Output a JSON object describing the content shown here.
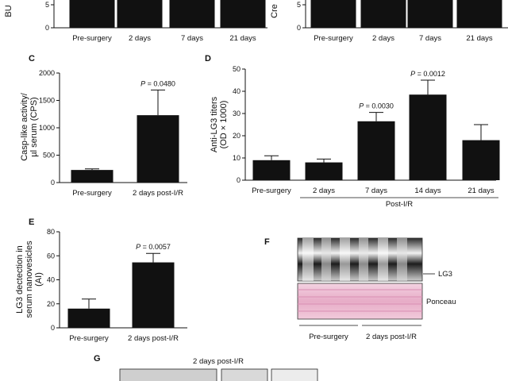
{
  "chart_data": [
    {
      "panel": "A",
      "type": "bar",
      "ylabel": "BU",
      "yticks": [
        0,
        5
      ],
      "categories": [
        "Pre-surgery",
        "2 days",
        "7 days",
        "21 days"
      ],
      "values": [
        6.5,
        6.5,
        6.5,
        6.5
      ]
    },
    {
      "panel": "B",
      "type": "bar",
      "ylabel": "Cre",
      "yticks": [
        0,
        5
      ],
      "categories": [
        "Pre-surgery",
        "2 days",
        "7 days",
        "21 days"
      ],
      "values": [
        6.5,
        6.5,
        6.5,
        6.5
      ]
    },
    {
      "panel": "C",
      "type": "bar",
      "ylabel": "Casp-like activity/\nµl serum (CPS)",
      "ylim": [
        0,
        2000
      ],
      "yticks": [
        0,
        500,
        1000,
        1500,
        2000
      ],
      "categories": [
        "Pre-surgery",
        "2 days post-I/R"
      ],
      "values": [
        230,
        1230
      ],
      "errors": [
        20,
        460
      ],
      "annotations": [
        {
          "category": "2 days post-I/R",
          "text": "P = 0.0480"
        }
      ]
    },
    {
      "panel": "D",
      "type": "bar",
      "ylabel": "Anti-LG3 titers\n(OD × 1000)",
      "ylim": [
        0,
        50
      ],
      "yticks": [
        0,
        10,
        20,
        30,
        40,
        50
      ],
      "categories": [
        "Pre-surgery",
        "2 days",
        "7 days",
        "14 days",
        "21 days"
      ],
      "values": [
        9,
        8,
        26.5,
        38.5,
        18
      ],
      "errors": [
        2,
        1.5,
        4,
        6.5,
        7
      ],
      "group_label": "Post-I/R",
      "annotations": [
        {
          "category": "7 days",
          "text": "P = 0.0030"
        },
        {
          "category": "14 days",
          "text": "P = 0.0012"
        }
      ]
    },
    {
      "panel": "E",
      "type": "bar",
      "ylabel": "LG3 dectection in\nserum nanovesicles\n(AI)",
      "ylim": [
        0,
        80
      ],
      "yticks": [
        0,
        20,
        40,
        60,
        80
      ],
      "categories": [
        "Pre-surgery",
        "2 days post-I/R"
      ],
      "values": [
        16,
        54.5
      ],
      "errors": [
        8,
        7.5
      ],
      "annotations": [
        {
          "category": "2 days post-I/R",
          "text": "P = 0.0057"
        }
      ]
    }
  ],
  "panel_f": {
    "letter": "F",
    "lg3_label": "LG3",
    "ponceau_label": "Ponceau",
    "group_labels": [
      "Pre-surgery",
      "2 days post-I/R"
    ]
  },
  "panel_g": {
    "letter": "G",
    "title": "2 days post-I/R"
  },
  "colors": {
    "bar": "#111111",
    "ponceau": "#e9b9cf",
    "blot_bg": "#d8d8d8"
  }
}
